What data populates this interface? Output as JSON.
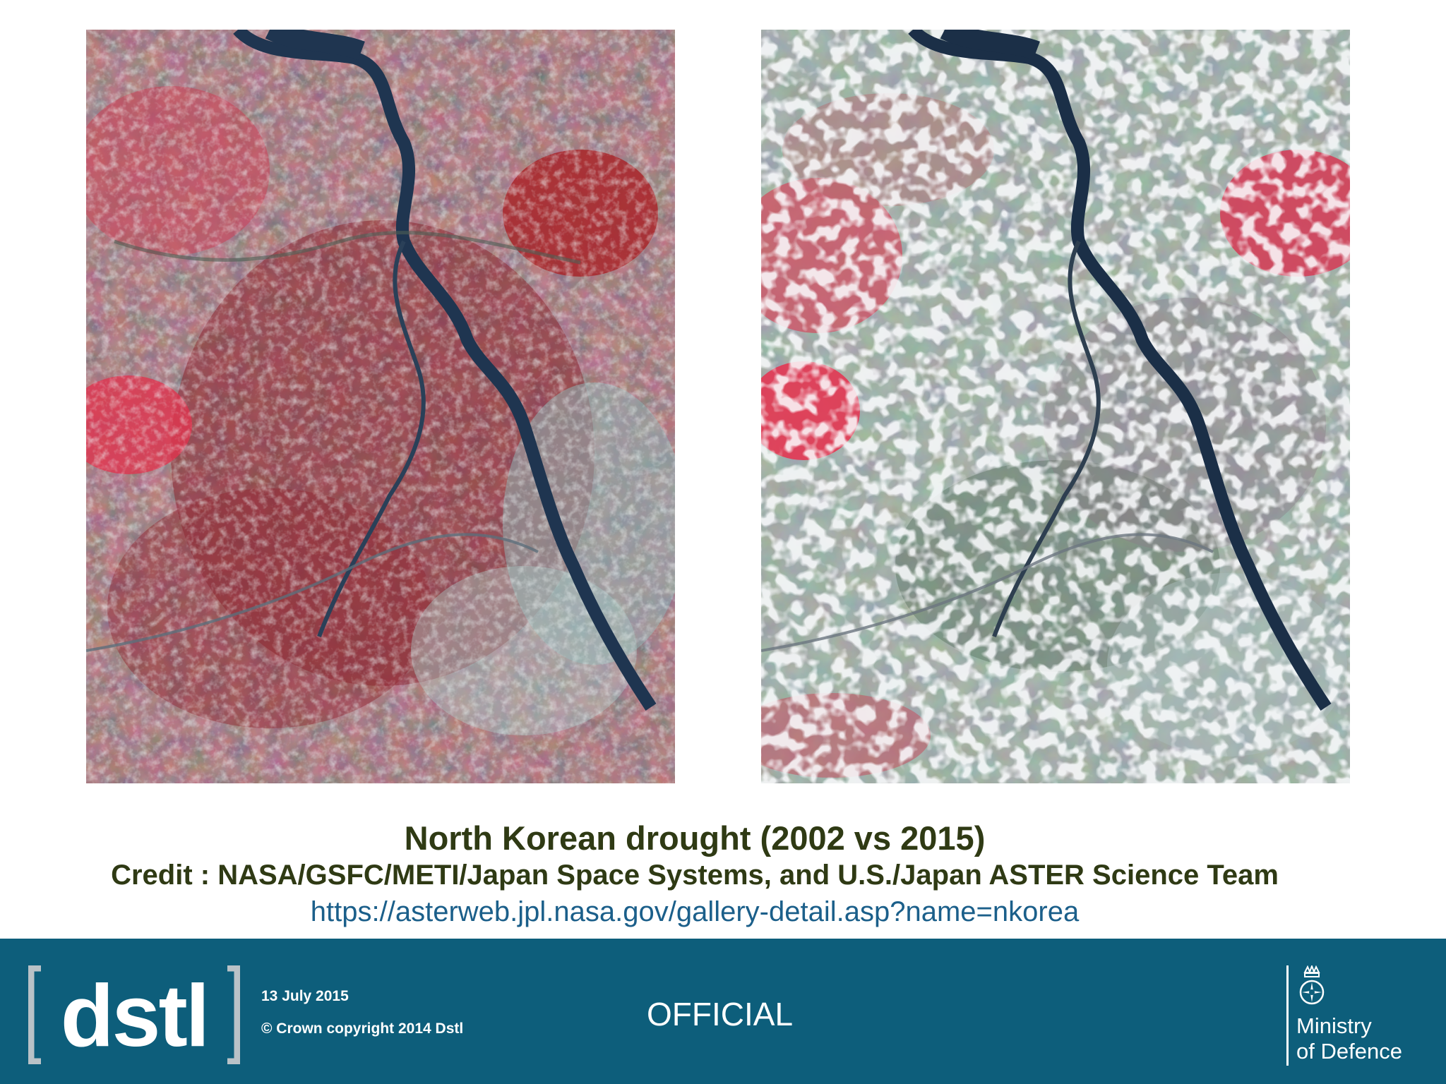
{
  "caption": {
    "title": "North Korean drought (2002 vs 2015)",
    "credit": "Credit : NASA/GSFC/METI/Japan Space Systems, and U.S./Japan ASTER Science Team",
    "url": "https://asterweb.jpl.nasa.gov/gallery-detail.asp?name=nkorea"
  },
  "footer": {
    "logo_text": "[dstl]",
    "date": "13 July 2015",
    "copyright": "© Crown copyright 2014 Dstl",
    "classification": "OFFICIAL",
    "department_line1": "Ministry",
    "department_line2": "of Defence"
  },
  "colors": {
    "footer_bg": "#0d5e7b",
    "title_text": "#2f3a14",
    "url_text": "#1b5f8a",
    "vegetation_red": "#c63a4c",
    "river": "#1f3550"
  }
}
